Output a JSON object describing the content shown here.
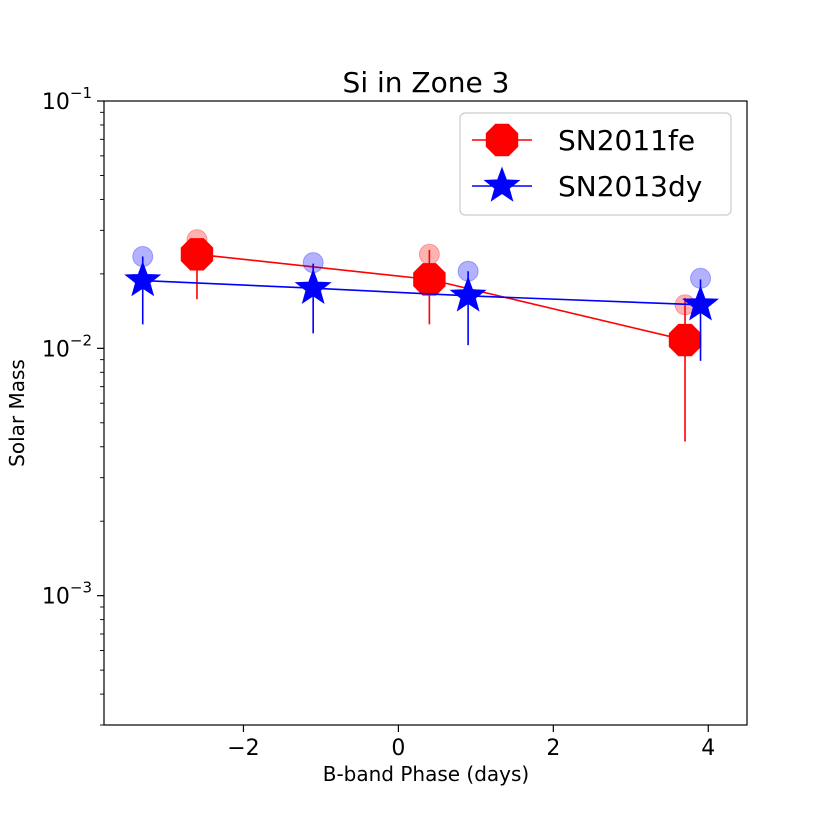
{
  "chart_data": {
    "type": "scatter",
    "title": "Si in Zone 3",
    "xlabel": "B-band Phase (days)",
    "ylabel": "Solar Mass",
    "yscale": "log",
    "xlim": [
      -3.8,
      4.5
    ],
    "ylim": [
      0.0003,
      0.1
    ],
    "x_ticks": [
      -2,
      0,
      2,
      4
    ],
    "x_tick_labels": [
      "−2",
      "0",
      "2",
      "4"
    ],
    "y_ticks": [
      {
        "value": 0.1,
        "base": "10",
        "exp": "−1"
      },
      {
        "value": 0.01,
        "base": "10",
        "exp": "−2"
      },
      {
        "value": 0.001,
        "base": "10",
        "exp": "−3"
      }
    ],
    "legend_location": "upper right",
    "series": [
      {
        "name": "SN2011fe",
        "color": "#ff0000",
        "marker": "octagon",
        "x": [
          -2.6,
          0.4,
          3.7
        ],
        "y": [
          0.024,
          0.019,
          0.0108
        ],
        "err_low": [
          0.0158,
          0.0125,
          0.0042
        ],
        "err_high": [
          0.027,
          0.025,
          0.016
        ],
        "faded_x": [
          -2.6,
          0.4,
          3.7
        ],
        "faded_y": [
          0.0275,
          0.024,
          0.015
        ]
      },
      {
        "name": "SN2013dy",
        "color": "#0000ff",
        "marker": "star",
        "x": [
          -3.3,
          -1.1,
          0.9,
          3.9
        ],
        "y": [
          0.0188,
          0.0175,
          0.0163,
          0.015
        ],
        "err_low": [
          0.0125,
          0.0115,
          0.0103,
          0.0089
        ],
        "err_high": [
          0.0235,
          0.022,
          0.0205,
          0.019
        ],
        "faded_x": [
          -3.3,
          -1.1,
          0.9,
          3.9
        ],
        "faded_y": [
          0.0235,
          0.0222,
          0.0205,
          0.0192
        ]
      }
    ]
  }
}
